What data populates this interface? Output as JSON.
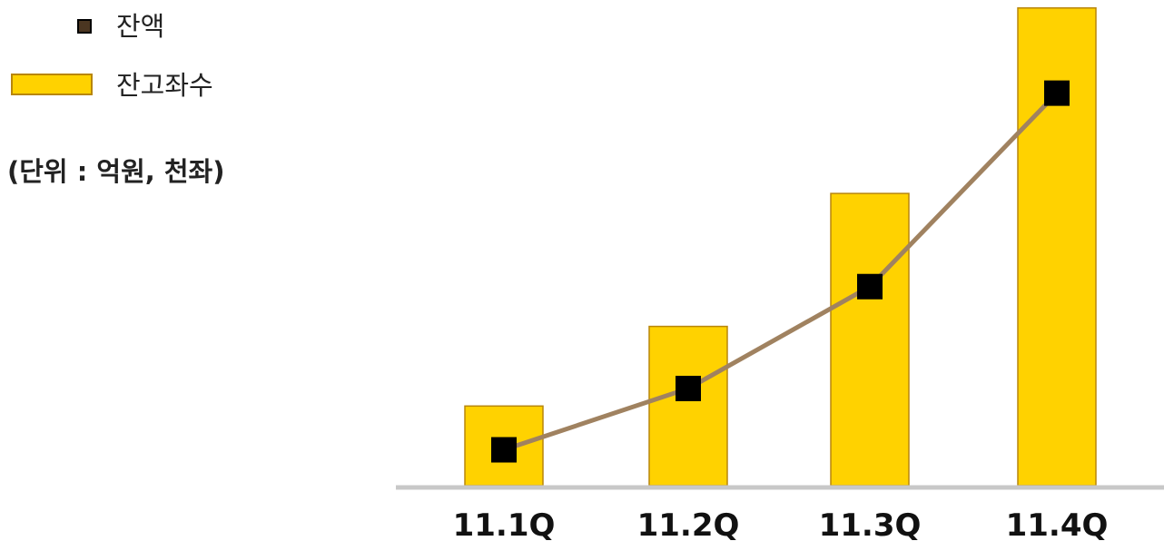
{
  "chart_data": {
    "type": "bar",
    "categories": [
      "11.1Q",
      "11.2Q",
      "11.3Q",
      "11.4Q"
    ],
    "series": [
      {
        "name": "잔고좌수",
        "kind": "bar",
        "color": "#FFD200",
        "border_color": "#B8860B",
        "values": [
          100,
          200,
          367,
          600
        ]
      },
      {
        "name": "잔액",
        "kind": "line",
        "line_color": "#A08260",
        "marker_color": "#000000",
        "marker": "square",
        "values": [
          45,
          122,
          250,
          493
        ]
      }
    ],
    "unit": "(단위 : 억원, 천좌)",
    "ylim": [
      0,
      610
    ],
    "legend_position": "top-left",
    "grid": false
  }
}
